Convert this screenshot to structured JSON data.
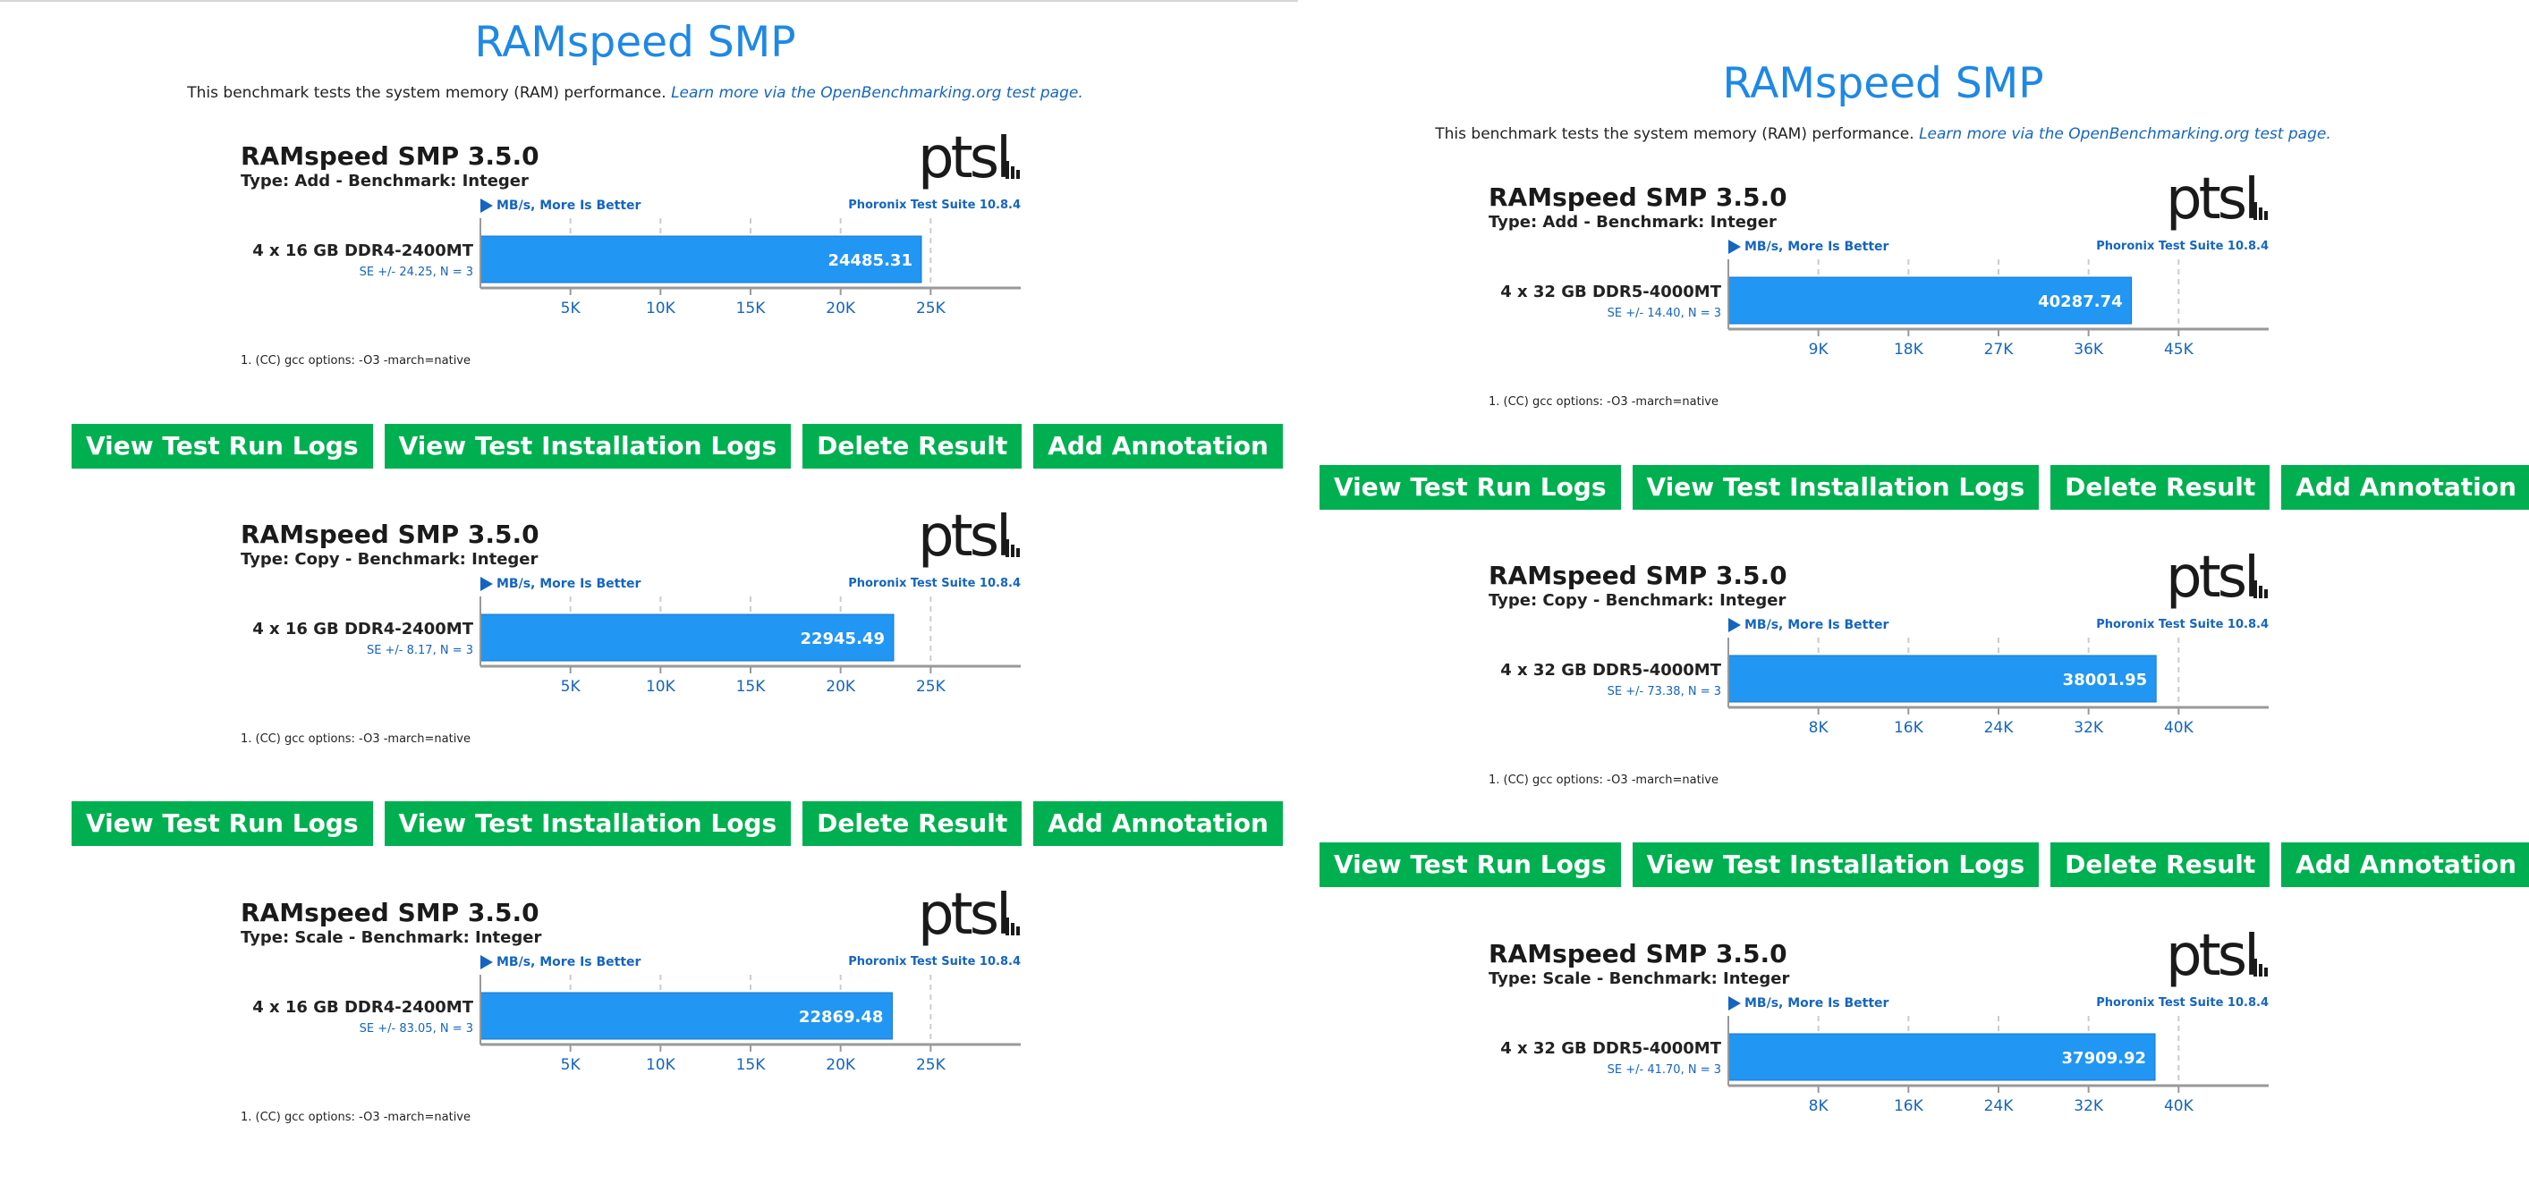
{
  "panels": [
    {
      "title": "RAMspeed SMP",
      "description": "This benchmark tests the system memory (RAM) performance.",
      "learn_more": "Learn more via the OpenBenchmarking.org test page.",
      "cards": [
        {
          "title": "RAMspeed SMP 3.5.0",
          "subtitle": "Type: Add - Benchmark: Integer",
          "metric": "MB/s, More Is Better",
          "suite": "Phoronix Test Suite 10.8.4",
          "footnote": "1. (CC) gcc options: -O3 -march=native"
        },
        {
          "title": "RAMspeed SMP 3.5.0",
          "subtitle": "Type: Copy - Benchmark: Integer",
          "metric": "MB/s, More Is Better",
          "suite": "Phoronix Test Suite 10.8.4",
          "footnote": "1. (CC) gcc options: -O3 -march=native"
        },
        {
          "title": "RAMspeed SMP 3.5.0",
          "subtitle": "Type: Scale - Benchmark: Integer",
          "metric": "MB/s, More Is Better",
          "suite": "Phoronix Test Suite 10.8.4",
          "footnote": "1. (CC) gcc options: -O3 -march=native"
        }
      ],
      "buttons": [
        {
          "view_run_logs": "View Test Run Logs",
          "view_install_logs": "View Test Installation Logs",
          "delete_result": "Delete Result",
          "add_annotation": "Add Annotation"
        },
        {
          "view_run_logs": "View Test Run Logs",
          "view_install_logs": "View Test Installation Logs",
          "delete_result": "Delete Result",
          "add_annotation": "Add Annotation"
        }
      ]
    },
    {
      "title": "RAMspeed SMP",
      "description": "This benchmark tests the system memory (RAM) performance.",
      "learn_more": "Learn more via the OpenBenchmarking.org test page.",
      "cards": [
        {
          "title": "RAMspeed SMP 3.5.0",
          "subtitle": "Type: Add - Benchmark: Integer",
          "metric": "MB/s, More Is Better",
          "suite": "Phoronix Test Suite 10.8.4",
          "footnote": "1. (CC) gcc options: -O3 -march=native"
        },
        {
          "title": "RAMspeed SMP 3.5.0",
          "subtitle": "Type: Copy - Benchmark: Integer",
          "metric": "MB/s, More Is Better",
          "suite": "Phoronix Test Suite 10.8.4",
          "footnote": "1. (CC) gcc options: -O3 -march=native"
        },
        {
          "title": "RAMspeed SMP 3.5.0",
          "subtitle": "Type: Scale - Benchmark: Integer",
          "metric": "MB/s, More Is Better",
          "suite": "Phoronix Test Suite 10.8.4",
          "footnote": ""
        }
      ],
      "buttons": [
        {
          "view_run_logs": "View Test Run Logs",
          "view_install_logs": "View Test Installation Logs",
          "delete_result": "Delete Result",
          "add_annotation": "Add Annotation"
        },
        {
          "view_run_logs": "View Test Run Logs",
          "view_install_logs": "View Test Installation Logs",
          "delete_result": "Delete Result",
          "add_annotation": "Add Annotation"
        }
      ]
    }
  ],
  "logo_text": "ptsl",
  "colors": {
    "title": "#1e88e5",
    "bar": "#2196f3",
    "button": "#00b050",
    "link": "#1565c0"
  },
  "chart_data": [
    {
      "type": "bar",
      "orientation": "horizontal",
      "categories": [
        "4 x 16 GB DDR4-2400MT"
      ],
      "values": [
        24485.31
      ],
      "value_labels": [
        "24485.31"
      ],
      "error_labels": [
        "SE +/- 24.25, N = 3"
      ],
      "xticks": [
        5000,
        10000,
        15000,
        20000,
        25000
      ],
      "xtick_labels": [
        "5K",
        "10K",
        "15K",
        "20K",
        "25K"
      ],
      "xlim": [
        0,
        30000
      ]
    },
    {
      "type": "bar",
      "orientation": "horizontal",
      "categories": [
        "4 x 16 GB DDR4-2400MT"
      ],
      "values": [
        22945.49
      ],
      "value_labels": [
        "22945.49"
      ],
      "error_labels": [
        "SE +/- 8.17, N = 3"
      ],
      "xticks": [
        5000,
        10000,
        15000,
        20000,
        25000
      ],
      "xtick_labels": [
        "5K",
        "10K",
        "15K",
        "20K",
        "25K"
      ],
      "xlim": [
        0,
        30000
      ]
    },
    {
      "type": "bar",
      "orientation": "horizontal",
      "categories": [
        "4 x 16 GB DDR4-2400MT"
      ],
      "values": [
        22869.48
      ],
      "value_labels": [
        "22869.48"
      ],
      "error_labels": [
        "SE +/- 83.05, N = 3"
      ],
      "xticks": [
        5000,
        10000,
        15000,
        20000,
        25000
      ],
      "xtick_labels": [
        "5K",
        "10K",
        "15K",
        "20K",
        "25K"
      ],
      "xlim": [
        0,
        30000
      ]
    },
    {
      "type": "bar",
      "orientation": "horizontal",
      "categories": [
        "4 x 32 GB DDR5-4000MT"
      ],
      "values": [
        40287.74
      ],
      "value_labels": [
        "40287.74"
      ],
      "error_labels": [
        "SE +/- 14.40, N = 3"
      ],
      "xticks": [
        9000,
        18000,
        27000,
        36000,
        45000
      ],
      "xtick_labels": [
        "9K",
        "18K",
        "27K",
        "36K",
        "45K"
      ],
      "xlim": [
        0,
        54000
      ]
    },
    {
      "type": "bar",
      "orientation": "horizontal",
      "categories": [
        "4 x 32 GB DDR5-4000MT"
      ],
      "values": [
        38001.95
      ],
      "value_labels": [
        "38001.95"
      ],
      "error_labels": [
        "SE +/- 73.38, N = 3"
      ],
      "xticks": [
        8000,
        16000,
        24000,
        32000,
        40000
      ],
      "xtick_labels": [
        "8K",
        "16K",
        "24K",
        "32K",
        "40K"
      ],
      "xlim": [
        0,
        48000
      ]
    },
    {
      "type": "bar",
      "orientation": "horizontal",
      "categories": [
        "4 x 32 GB DDR5-4000MT"
      ],
      "values": [
        37909.92
      ],
      "value_labels": [
        "37909.92"
      ],
      "error_labels": [
        "SE +/- 41.70, N = 3"
      ],
      "xticks": [
        8000,
        16000,
        24000,
        32000,
        40000
      ],
      "xtick_labels": [
        "8K",
        "16K",
        "24K",
        "32K",
        "40K"
      ],
      "xlim": [
        0,
        48000
      ]
    }
  ]
}
